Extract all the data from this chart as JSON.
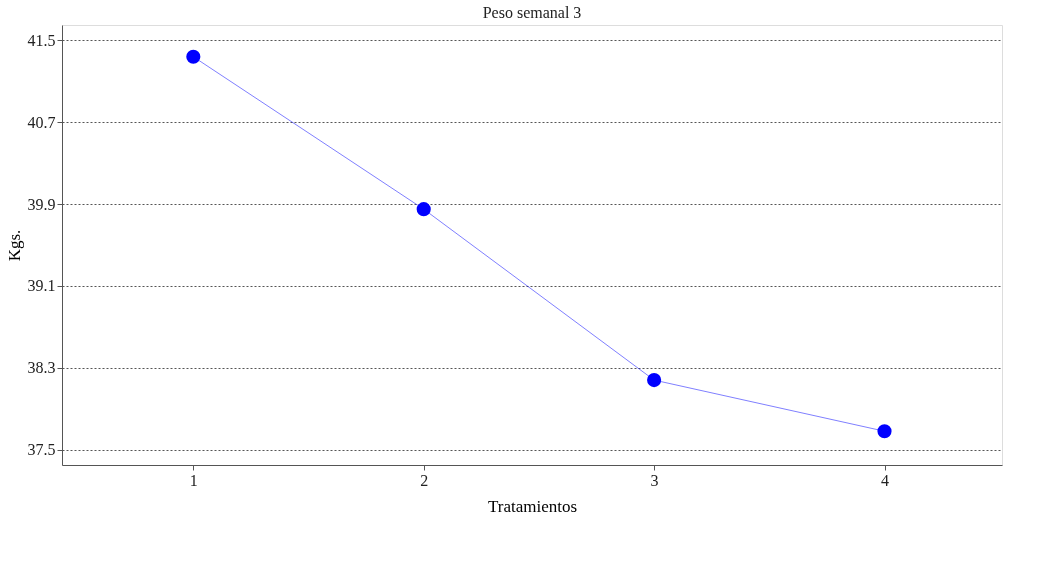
{
  "chart_data": {
    "type": "line",
    "title": "Peso semanal 3",
    "xlabel": "Tratamientos",
    "ylabel": "Kgs.",
    "x": [
      1,
      2,
      3,
      4
    ],
    "series": [
      {
        "color": "#0000ff",
        "values": [
          41.34,
          39.85,
          38.18,
          37.68
        ]
      }
    ],
    "xlim": [
      0.43,
      4.51
    ],
    "xticks": [
      1,
      2,
      3,
      4
    ],
    "ylim": [
      37.35,
      41.65
    ],
    "yticks": [
      37.5,
      38.3,
      39.1,
      39.9,
      40.7,
      41.5
    ],
    "grid": "y",
    "marker": "circle",
    "line_style": "solid"
  }
}
